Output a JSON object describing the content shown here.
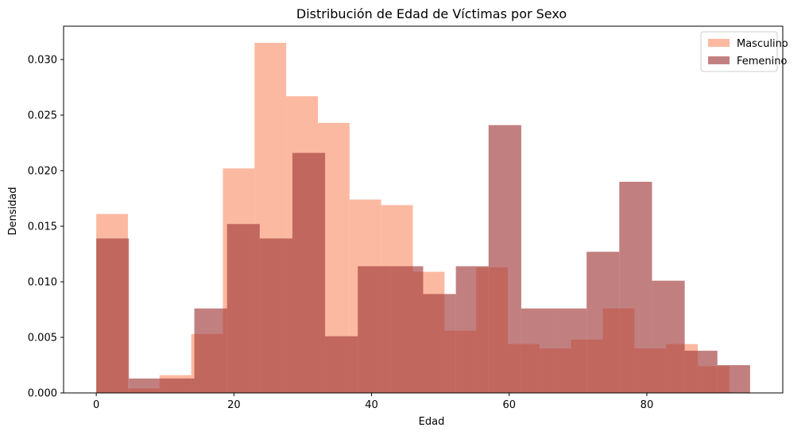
{
  "chart_data": {
    "type": "bar",
    "title": "Distribución de Edad de Víctimas por Sexo",
    "xlabel": "Edad",
    "ylabel": "Densidad",
    "xlim": [
      -4.75,
      99.75
    ],
    "ylim": [
      0,
      0.033
    ],
    "xticks": [
      0,
      20,
      40,
      60,
      80
    ],
    "yticks": [
      "0.000",
      "0.005",
      "0.010",
      "0.015",
      "0.020",
      "0.025",
      "0.030"
    ],
    "grid": false,
    "legend_position": "top-right",
    "series": [
      {
        "name": "Masculino",
        "color": "#fa8a63",
        "opacity": 0.6,
        "bins": [
          {
            "x0": 0.0,
            "x1": 4.6,
            "y": 0.0161
          },
          {
            "x0": 4.6,
            "x1": 9.2,
            "y": 0.0004
          },
          {
            "x0": 9.2,
            "x1": 13.8,
            "y": 0.0016
          },
          {
            "x0": 13.8,
            "x1": 18.4,
            "y": 0.0053
          },
          {
            "x0": 18.4,
            "x1": 23.0,
            "y": 0.0202
          },
          {
            "x0": 23.0,
            "x1": 27.6,
            "y": 0.0315
          },
          {
            "x0": 27.6,
            "x1": 32.2,
            "y": 0.0267
          },
          {
            "x0": 32.2,
            "x1": 36.8,
            "y": 0.0243
          },
          {
            "x0": 36.8,
            "x1": 41.4,
            "y": 0.0174
          },
          {
            "x0": 41.4,
            "x1": 46.0,
            "y": 0.0169
          },
          {
            "x0": 46.0,
            "x1": 50.6,
            "y": 0.0109
          },
          {
            "x0": 50.6,
            "x1": 55.2,
            "y": 0.0056
          },
          {
            "x0": 55.2,
            "x1": 59.8,
            "y": 0.0113
          },
          {
            "x0": 59.8,
            "x1": 64.4,
            "y": 0.0044
          },
          {
            "x0": 64.4,
            "x1": 69.0,
            "y": 0.004
          },
          {
            "x0": 69.0,
            "x1": 73.6,
            "y": 0.0048
          },
          {
            "x0": 73.6,
            "x1": 78.2,
            "y": 0.0076
          },
          {
            "x0": 78.2,
            "x1": 82.8,
            "y": 0.004
          },
          {
            "x0": 82.8,
            "x1": 87.4,
            "y": 0.0044
          },
          {
            "x0": 87.4,
            "x1": 92.0,
            "y": 0.0024
          }
        ]
      },
      {
        "name": "Femenino",
        "color": "#a13b3b",
        "opacity": 0.65,
        "bins": [
          {
            "x0": 0.0,
            "x1": 4.75,
            "y": 0.0139
          },
          {
            "x0": 4.75,
            "x1": 9.5,
            "y": 0.0013
          },
          {
            "x0": 9.5,
            "x1": 14.25,
            "y": 0.0013
          },
          {
            "x0": 14.25,
            "x1": 19.0,
            "y": 0.0076
          },
          {
            "x0": 19.0,
            "x1": 23.75,
            "y": 0.0152
          },
          {
            "x0": 23.75,
            "x1": 28.5,
            "y": 0.0139
          },
          {
            "x0": 28.5,
            "x1": 33.25,
            "y": 0.0216
          },
          {
            "x0": 33.25,
            "x1": 38.0,
            "y": 0.0051
          },
          {
            "x0": 38.0,
            "x1": 42.75,
            "y": 0.0114
          },
          {
            "x0": 42.75,
            "x1": 47.5,
            "y": 0.0114
          },
          {
            "x0": 47.5,
            "x1": 52.25,
            "y": 0.0089
          },
          {
            "x0": 52.25,
            "x1": 57.0,
            "y": 0.0114
          },
          {
            "x0": 57.0,
            "x1": 61.75,
            "y": 0.0241
          },
          {
            "x0": 61.75,
            "x1": 66.5,
            "y": 0.0076
          },
          {
            "x0": 66.5,
            "x1": 71.25,
            "y": 0.0076
          },
          {
            "x0": 71.25,
            "x1": 76.0,
            "y": 0.0127
          },
          {
            "x0": 76.0,
            "x1": 80.75,
            "y": 0.019
          },
          {
            "x0": 80.75,
            "x1": 85.5,
            "y": 0.0101
          },
          {
            "x0": 85.5,
            "x1": 90.25,
            "y": 0.0038
          },
          {
            "x0": 90.25,
            "x1": 95.0,
            "y": 0.0025
          }
        ]
      }
    ]
  }
}
